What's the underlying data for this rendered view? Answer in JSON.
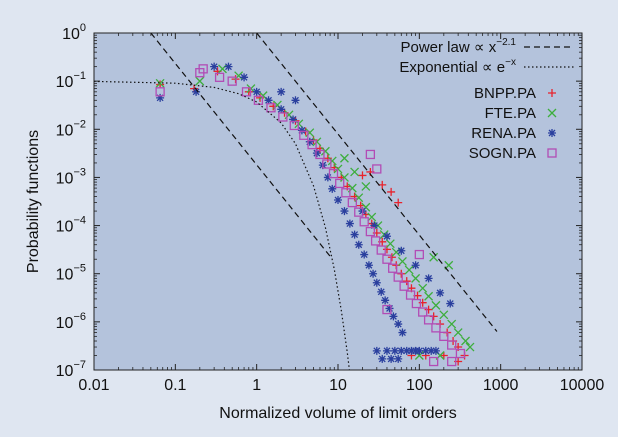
{
  "chart_data": {
    "type": "scatter",
    "xlabel": "Normalized volume of limit orders",
    "ylabel": "Probability functions",
    "xscale": "log",
    "yscale": "log",
    "xlim": [
      0.01,
      10000
    ],
    "ylim": [
      1e-07,
      1
    ],
    "x_ticks": [
      {
        "value": 0.01,
        "label": "0.01"
      },
      {
        "value": 0.1,
        "label": "0.1"
      },
      {
        "value": 1,
        "label": "1"
      },
      {
        "value": 10,
        "label": "10"
      },
      {
        "value": 100,
        "label": "100"
      },
      {
        "value": 1000,
        "label": "1000"
      },
      {
        "value": 10000,
        "label": "10000"
      }
    ],
    "y_ticks": [
      {
        "value": 1e-07,
        "base": "10",
        "exp": "−7"
      },
      {
        "value": 1e-06,
        "base": "10",
        "exp": "−6"
      },
      {
        "value": 1e-05,
        "base": "10",
        "exp": "−5"
      },
      {
        "value": 0.0001,
        "base": "10",
        "exp": "−4"
      },
      {
        "value": 0.001,
        "base": "10",
        "exp": "−3"
      },
      {
        "value": 0.01,
        "base": "10",
        "exp": "−2"
      },
      {
        "value": 0.1,
        "base": "10",
        "exp": "−1"
      },
      {
        "value": 1,
        "base": "10",
        "exp": "0"
      }
    ],
    "legend_position": "top-right",
    "fits": [
      {
        "name": "Power law ∝ x",
        "name_exp": "−2.1",
        "style": "dashed",
        "exponent": -2.1,
        "lines": [
          {
            "x": [
              0.05,
              8
            ],
            "y": [
              1,
              2.3e-05
            ]
          },
          {
            "x": [
              1,
              30
            ],
            "y": [
              1,
              0.00079
            ],
            "x_end": 900,
            "y_end": 6.3e-07
          }
        ]
      },
      {
        "name": "Exponential ∝ e",
        "name_exp": "−x",
        "style": "dotted",
        "formula": "0.1*exp(-x)",
        "points": [
          [
            0.01,
            0.099
          ],
          [
            0.1,
            0.0905
          ],
          [
            0.3,
            0.074
          ],
          [
            0.6,
            0.0549
          ],
          [
            1,
            0.0368
          ],
          [
            2,
            0.0135
          ],
          [
            3,
            0.005
          ],
          [
            5,
            0.00067
          ],
          [
            7,
            9.1e-05
          ],
          [
            9,
            1.23e-05
          ],
          [
            11,
            1.67e-06
          ],
          [
            13,
            2.3e-07
          ],
          [
            13.8,
            1e-07
          ]
        ]
      }
    ],
    "series": [
      {
        "name": "BNPP.PA",
        "marker": "plus",
        "color": "#e8232c",
        "points": [
          [
            0.065,
            0.085
          ],
          [
            0.17,
            0.07
          ],
          [
            0.33,
            0.16
          ],
          [
            0.55,
            0.11
          ],
          [
            0.8,
            0.06
          ],
          [
            1.1,
            0.045
          ],
          [
            1.6,
            0.03
          ],
          [
            2.2,
            0.022
          ],
          [
            3,
            0.015
          ],
          [
            4,
            0.009
          ],
          [
            5,
            0.006
          ],
          [
            6,
            0.004
          ],
          [
            7.5,
            0.0025
          ],
          [
            9,
            0.0016
          ],
          [
            11,
            0.001
          ],
          [
            13,
            0.00065
          ],
          [
            16,
            0.0004
          ],
          [
            19,
            0.00026
          ],
          [
            22,
            0.00017
          ],
          [
            26,
            0.00011
          ],
          [
            30,
            7e-05
          ],
          [
            35,
            4.6e-05
          ],
          [
            40,
            3.2e-05
          ],
          [
            46,
            2.2e-05
          ],
          [
            52,
            1.5e-05
          ],
          [
            60,
            1e-05
          ],
          [
            70,
            7e-06
          ],
          [
            80,
            5e-06
          ],
          [
            95,
            3.5e-06
          ],
          [
            110,
            2.5e-06
          ],
          [
            130,
            1.8e-06
          ],
          [
            150,
            1.3e-06
          ],
          [
            180,
            9e-07
          ],
          [
            220,
            6e-07
          ],
          [
            260,
            4e-07
          ],
          [
            300,
            3e-07
          ],
          [
            360,
            2e-07
          ],
          [
            35,
            0.0007
          ],
          [
            45,
            0.0005
          ],
          [
            55,
            0.0003
          ],
          [
            25,
            0.0013
          ],
          [
            20,
            0.0011
          ],
          [
            80,
            2e-07
          ],
          [
            120,
            2e-07
          ],
          [
            200,
            2e-07
          ],
          [
            300,
            1.5e-07
          ]
        ]
      },
      {
        "name": "FTE.PA",
        "marker": "cross",
        "color": "#3dae3d",
        "points": [
          [
            0.065,
            0.09
          ],
          [
            0.2,
            0.1
          ],
          [
            0.38,
            0.18
          ],
          [
            0.6,
            0.13
          ],
          [
            0.85,
            0.07
          ],
          [
            1.2,
            0.05
          ],
          [
            1.8,
            0.032
          ],
          [
            2.5,
            0.02
          ],
          [
            3.3,
            0.013
          ],
          [
            4.5,
            0.0085
          ],
          [
            5.5,
            0.0055
          ],
          [
            7,
            0.0035
          ],
          [
            8.5,
            0.0022
          ],
          [
            10,
            0.0015
          ],
          [
            12,
            0.001
          ],
          [
            15,
            0.0006
          ],
          [
            18,
            0.00038
          ],
          [
            22,
            0.00024
          ],
          [
            26,
            0.00015
          ],
          [
            31,
            0.0001
          ],
          [
            37,
            6.5e-05
          ],
          [
            44,
            4.2e-05
          ],
          [
            52,
            2.8e-05
          ],
          [
            62,
            1.8e-05
          ],
          [
            75,
            1.2e-05
          ],
          [
            90,
            8e-06
          ],
          [
            110,
            5e-06
          ],
          [
            130,
            3.4e-06
          ],
          [
            160,
            2.2e-06
          ],
          [
            200,
            1.4e-06
          ],
          [
            250,
            9e-07
          ],
          [
            300,
            6e-07
          ],
          [
            370,
            4e-07
          ],
          [
            420,
            3e-07
          ],
          [
            12,
            0.0025
          ],
          [
            16,
            0.0013
          ],
          [
            22,
            0.00065
          ],
          [
            150,
            2.2e-05
          ],
          [
            230,
            1.5e-05
          ],
          [
            100,
            2e-07
          ],
          [
            180,
            2e-07
          ]
        ]
      },
      {
        "name": "RENA.PA",
        "marker": "star",
        "color": "#2a3f9e",
        "points": [
          [
            0.065,
            0.045
          ],
          [
            0.18,
            0.06
          ],
          [
            0.3,
            0.2
          ],
          [
            0.45,
            0.2
          ],
          [
            0.7,
            0.12
          ],
          [
            1,
            0.06
          ],
          [
            1.4,
            0.04
          ],
          [
            2,
            0.026
          ],
          [
            2.8,
            0.016
          ],
          [
            3.6,
            0.0095
          ],
          [
            4.5,
            0.0055
          ],
          [
            5.5,
            0.0032
          ],
          [
            6.5,
            0.0018
          ],
          [
            7.5,
            0.001
          ],
          [
            8.5,
            0.00058
          ],
          [
            10,
            0.00034
          ],
          [
            12,
            0.0002
          ],
          [
            14,
            0.00011
          ],
          [
            16,
            6.5e-05
          ],
          [
            18,
            4e-05
          ],
          [
            21,
            2.5e-05
          ],
          [
            24,
            1.5e-05
          ],
          [
            27,
            1e-05
          ],
          [
            30,
            6.5e-06
          ],
          [
            34,
            4.2e-06
          ],
          [
            38,
            2.8e-06
          ],
          [
            43,
            1.9e-06
          ],
          [
            48,
            1.3e-06
          ],
          [
            55,
            9e-07
          ],
          [
            62,
            6e-07
          ],
          [
            30,
            2.5e-07
          ],
          [
            40,
            2.5e-07
          ],
          [
            50,
            2.5e-07
          ],
          [
            60,
            2.5e-07
          ],
          [
            70,
            2.5e-07
          ],
          [
            80,
            2.5e-07
          ],
          [
            90,
            2.5e-07
          ],
          [
            100,
            2.5e-07
          ],
          [
            120,
            2.5e-07
          ],
          [
            140,
            2.5e-07
          ],
          [
            160,
            2.5e-07
          ],
          [
            35,
            1.7e-07
          ],
          [
            45,
            1.7e-07
          ],
          [
            55,
            1.7e-07
          ],
          [
            20,
            0.0002
          ],
          [
            28,
            0.0001
          ],
          [
            40,
            6e-05
          ],
          [
            60,
            3e-05
          ],
          [
            90,
            1.5e-05
          ],
          [
            130,
            8e-06
          ],
          [
            180,
            4e-06
          ],
          [
            240,
            2.4e-06
          ],
          [
            2,
            0.06
          ],
          [
            3,
            0.04
          ]
        ]
      },
      {
        "name": "SOGN.PA",
        "marker": "square",
        "color": "#b24cb5",
        "points": [
          [
            0.065,
            0.06
          ],
          [
            0.2,
            0.15
          ],
          [
            0.22,
            0.18
          ],
          [
            0.35,
            0.12
          ],
          [
            0.5,
            0.1
          ],
          [
            0.75,
            0.06
          ],
          [
            1.05,
            0.04
          ],
          [
            1.5,
            0.028
          ],
          [
            2.1,
            0.018
          ],
          [
            2.9,
            0.012
          ],
          [
            3.8,
            0.0075
          ],
          [
            4.8,
            0.0048
          ],
          [
            6,
            0.003
          ],
          [
            7.3,
            0.0019
          ],
          [
            8.8,
            0.0012
          ],
          [
            10.5,
            0.00075
          ],
          [
            12.5,
            0.00048
          ],
          [
            15,
            0.0003
          ],
          [
            18,
            0.00019
          ],
          [
            21,
            0.00012
          ],
          [
            25,
            7.5e-05
          ],
          [
            29,
            4.8e-05
          ],
          [
            34,
            3.1e-05
          ],
          [
            40,
            2e-05
          ],
          [
            47,
            1.3e-05
          ],
          [
            55,
            8.5e-06
          ],
          [
            65,
            5.5e-06
          ],
          [
            78,
            3.6e-06
          ],
          [
            92,
            2.4e-06
          ],
          [
            110,
            1.6e-06
          ],
          [
            130,
            1.1e-06
          ],
          [
            160,
            7.5e-07
          ],
          [
            200,
            5e-07
          ],
          [
            250,
            3.3e-07
          ],
          [
            320,
            2.2e-07
          ],
          [
            25,
            0.003
          ],
          [
            30,
            0.0015
          ],
          [
            100,
            2.5e-05
          ],
          [
            40,
            1.8e-06
          ],
          [
            150,
            1.5e-07
          ],
          [
            250,
            1.5e-07
          ]
        ]
      }
    ]
  }
}
